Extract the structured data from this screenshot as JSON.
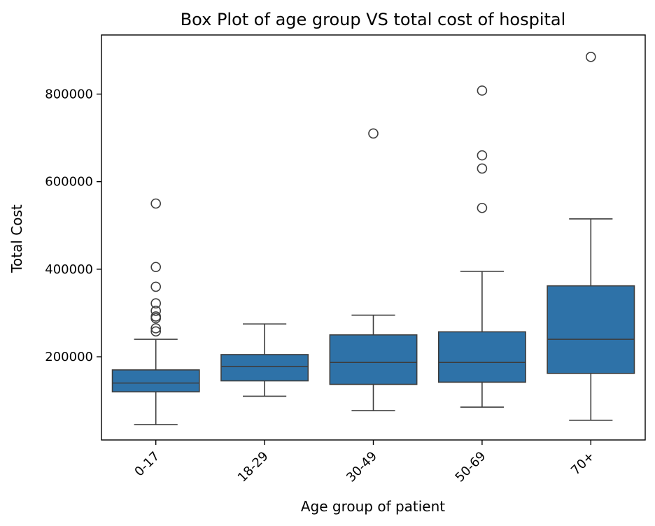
{
  "chart_data": {
    "type": "box",
    "title": "Box Plot of age group VS total cost of hospital",
    "xlabel": "Age group of patient",
    "ylabel": "Total Cost",
    "categories": [
      "0-17",
      "18-29",
      "30-49",
      "50-69",
      "70+"
    ],
    "ylim": [
      10000,
      935000
    ],
    "yticks": [
      200000,
      400000,
      600000,
      800000
    ],
    "ytick_labels": [
      "200000",
      "400000",
      "600000",
      "800000"
    ],
    "grid": false,
    "legend": "none",
    "colors": {
      "box": "#2e72a8",
      "line": "#3d3d3d",
      "outlier_edge": "#3d3d3d"
    },
    "boxes": [
      {
        "category": "0-17",
        "whisker_low": 45000,
        "q1": 120000,
        "median": 140000,
        "q3": 170000,
        "whisker_high": 240000,
        "outliers": [
          550000,
          405000,
          360000,
          322000,
          305000,
          292000,
          288000,
          265000,
          258000
        ]
      },
      {
        "category": "18-29",
        "whisker_low": 110000,
        "q1": 145000,
        "median": 178000,
        "q3": 205000,
        "whisker_high": 275000,
        "outliers": []
      },
      {
        "category": "30-49",
        "whisker_low": 77000,
        "q1": 137000,
        "median": 187000,
        "q3": 250000,
        "whisker_high": 295000,
        "outliers": [
          710000
        ]
      },
      {
        "category": "50-69",
        "whisker_low": 85000,
        "q1": 142000,
        "median": 187000,
        "q3": 257000,
        "whisker_high": 395000,
        "outliers": [
          808000,
          660000,
          630000,
          540000
        ]
      },
      {
        "category": "70+",
        "whisker_low": 55000,
        "q1": 162000,
        "median": 240000,
        "q3": 362000,
        "whisker_high": 515000,
        "outliers": [
          885000
        ]
      }
    ]
  }
}
